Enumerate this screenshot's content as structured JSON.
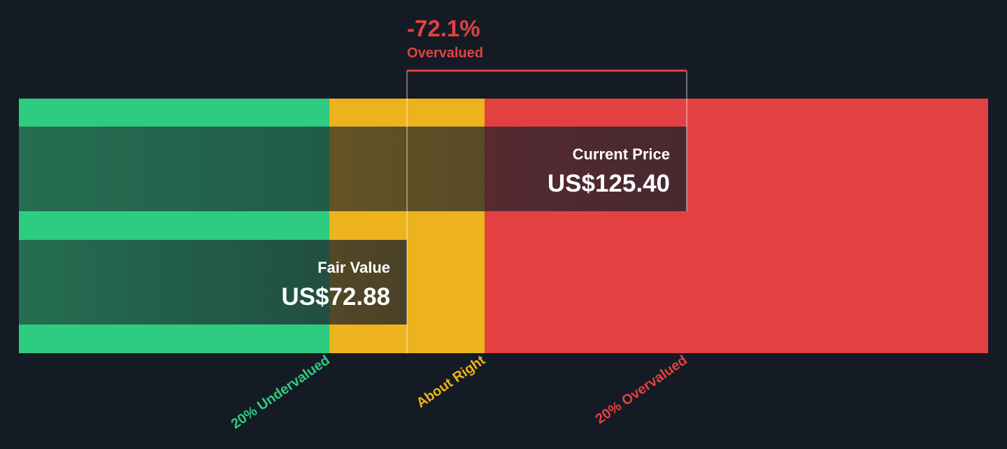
{
  "chart_data": {
    "type": "bar",
    "title": "",
    "currency": "US$",
    "x_range": [
      0,
      125.4
    ],
    "zones": [
      {
        "label": "20% Undervalued",
        "from": 0,
        "to": 58.3,
        "color": "#2ecc80"
      },
      {
        "label": "About Right",
        "from": 58.3,
        "to": 87.46,
        "color": "#ecb31c"
      },
      {
        "label": "20% Overvalued",
        "from": 87.46,
        "to": 125.4,
        "color": "#e34141"
      }
    ],
    "bars": [
      {
        "key": "current",
        "label": "Current Price",
        "value": 125.4,
        "display": "US$125.40"
      },
      {
        "key": "fair",
        "label": "Fair Value",
        "value": 72.88,
        "display": "US$72.88"
      }
    ],
    "difference": {
      "percent_text": "-72.1%",
      "label": "Overvalued",
      "color": "#e34141"
    }
  }
}
